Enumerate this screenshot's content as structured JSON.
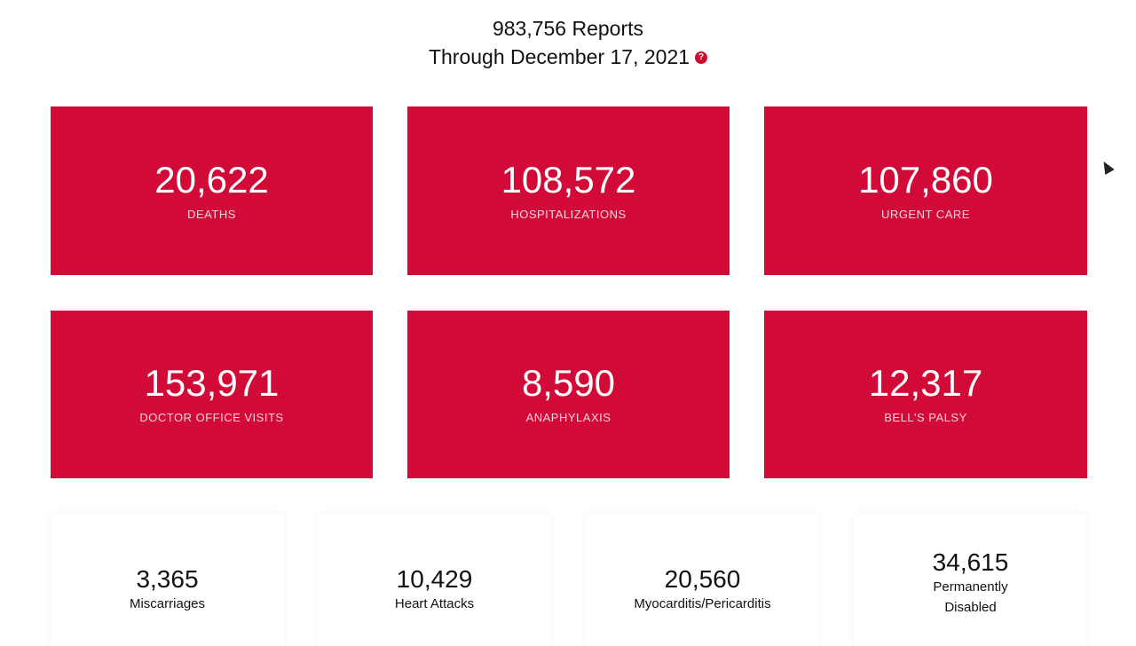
{
  "header": {
    "reports": "983,756 Reports",
    "through": "Through December 17, 2021",
    "help_icon": "?"
  },
  "cards": [
    {
      "value": "20,622",
      "label": "DEATHS"
    },
    {
      "value": "108,572",
      "label": "HOSPITALIZATIONS"
    },
    {
      "value": "107,860",
      "label": "URGENT CARE"
    },
    {
      "value": "153,971",
      "label": "DOCTOR OFFICE VISITS"
    },
    {
      "value": "8,590",
      "label": "ANAPHYLAXIS"
    },
    {
      "value": "12,317",
      "label": "BELL'S PALSY"
    }
  ],
  "mini": [
    {
      "value": "3,365",
      "label": "Miscarriages"
    },
    {
      "value": "10,429",
      "label": "Heart Attacks"
    },
    {
      "value": "20,560",
      "label": "Myocarditis/Pericarditis"
    },
    {
      "value": "34,615",
      "label1": "Permanently",
      "label2": "Disabled"
    }
  ],
  "colors": {
    "card": "#d20a38",
    "help": "#d30a2a"
  }
}
